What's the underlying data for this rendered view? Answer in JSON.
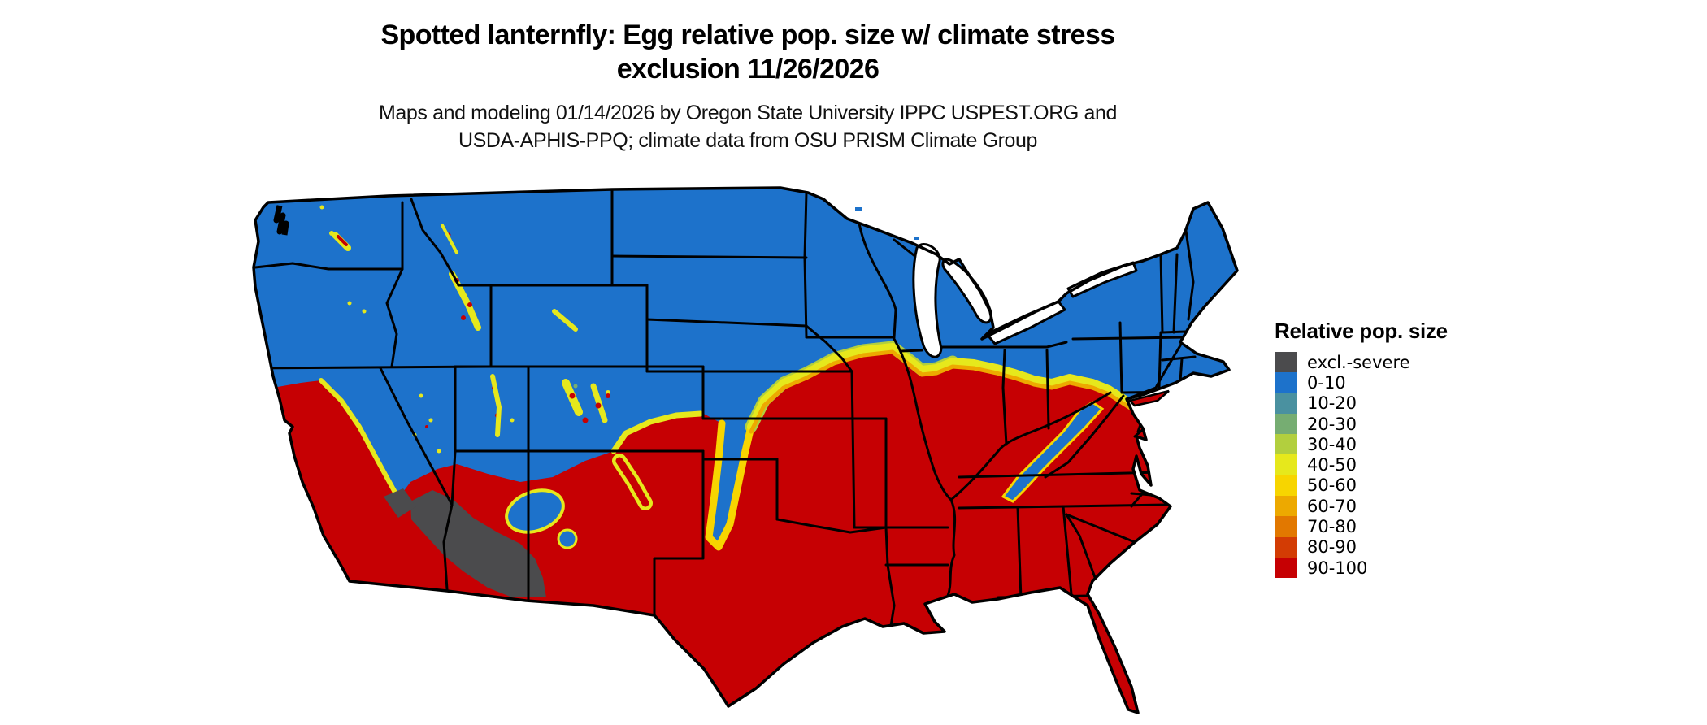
{
  "header": {
    "title_line1": "Spotted lanternfly: Egg relative pop. size w/ climate stress",
    "title_line2": "exclusion 11/26/2026",
    "subtitle_line1": "Maps and modeling 01/14/2026 by Oregon State University IPPC USPEST.ORG and",
    "subtitle_line2": "USDA-APHIS-PPQ; climate data from OSU PRISM Climate Group"
  },
  "legend": {
    "title": "Relative pop. size",
    "items": [
      {
        "label": "excl.-severe",
        "palette_key": "excl_severe"
      },
      {
        "label": "0-10",
        "palette_key": "p0_10"
      },
      {
        "label": "10-20",
        "palette_key": "p10_20"
      },
      {
        "label": "20-30",
        "palette_key": "p20_30"
      },
      {
        "label": "30-40",
        "palette_key": "p30_40"
      },
      {
        "label": "40-50",
        "palette_key": "p40_50"
      },
      {
        "label": "50-60",
        "palette_key": "p50_60"
      },
      {
        "label": "60-70",
        "palette_key": "p60_70"
      },
      {
        "label": "70-80",
        "palette_key": "p70_80"
      },
      {
        "label": "80-90",
        "palette_key": "p80_90"
      },
      {
        "label": "90-100",
        "palette_key": "p90_100"
      }
    ]
  },
  "map": {
    "palette": {
      "excl_severe": "#4b4b4d",
      "p0_10": "#1d72cb",
      "p10_20": "#4a91a0",
      "p20_30": "#76ad72",
      "p30_40": "#b2cf3e",
      "p40_50": "#e6e81c",
      "p50_60": "#f7d500",
      "p60_70": "#eda900",
      "p70_80": "#e27800",
      "p80_90": "#d33c04",
      "p90_100": "#c60003",
      "border": "#000000",
      "water_background": "#ffffff"
    },
    "zones": {
      "north": "0-10 (blue) across the northern states and mountain west",
      "south": "90-100 (red) across southern states, California valleys and coast",
      "transition": "yellow/orange 40-80 band along the blue-red boundary",
      "exclusion": "excl.-severe (gray) in southwest Arizona and southeast California deserts",
      "appalachians": "0-10 (blue) ridge through West Virginia, western Virginia, east Tennessee, west North Carolina"
    }
  }
}
